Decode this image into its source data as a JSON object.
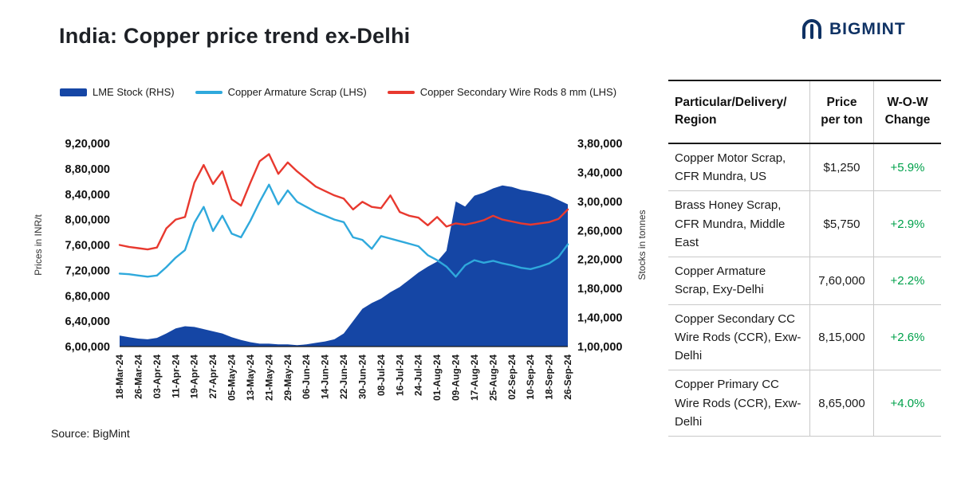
{
  "page": {
    "title": "India: Copper price trend ex-Delhi",
    "source": "Source: BigMint",
    "logo_text": "BIGMINT"
  },
  "colors": {
    "accent_navy": "#0f3264",
    "positive_green": "#00a14b",
    "series_area_blue": "#1546a5",
    "series_light_blue": "#2fa9dc",
    "series_red": "#e8392f"
  },
  "legend": [
    {
      "label": "LME Stock (RHS)",
      "color": "#1546a5",
      "type": "area"
    },
    {
      "label": "Copper Armature Scrap (LHS)",
      "color": "#2fa9dc",
      "type": "line"
    },
    {
      "label": "Copper Secondary Wire Rods 8 mm (LHS)",
      "color": "#e8392f",
      "type": "line"
    }
  ],
  "chart_data": {
    "type": "line",
    "title": "India: Copper price trend ex-Delhi",
    "legend_position": "top",
    "grid": false,
    "x_labels": [
      "18-Mar-24",
      "26-Mar-24",
      "03-Apr-24",
      "11-Apr-24",
      "19-Apr-24",
      "27-Apr-24",
      "05-May-24",
      "13-May-24",
      "21-May-24",
      "29-May-24",
      "06-Jun-24",
      "14-Jun-24",
      "22-Jun-24",
      "30-Jun-24",
      "08-Jul-24",
      "16-Jul-24",
      "24-Jul-24",
      "01-Aug-24",
      "09-Aug-24",
      "17-Aug-24",
      "25-Aug-24",
      "02-Sep-24",
      "10-Sep-24",
      "18-Sep-24",
      "26-Sep-24"
    ],
    "left_axis": {
      "label": "Prices in INR/t",
      "min": 600000,
      "max": 920000,
      "ticks": [
        "6,00,000",
        "6,40,000",
        "6,80,000",
        "7,20,000",
        "7,60,000",
        "8,00,000",
        "8,40,000",
        "8,80,000",
        "9,20,000"
      ]
    },
    "right_axis": {
      "label": "Stocks in tonnes",
      "min": 100000,
      "max": 380000,
      "ticks": [
        "1,00,000",
        "1,40,000",
        "1,80,000",
        "2,20,000",
        "2,60,000",
        "3,00,000",
        "3,40,000",
        "3,80,000"
      ]
    },
    "series": [
      {
        "id": "lme-stock",
        "name": "LME Stock (RHS)",
        "axis": "right",
        "type": "area",
        "color": "#1546a5",
        "values": [
          115000,
          113000,
          111000,
          110000,
          112000,
          118000,
          125000,
          128000,
          127000,
          124000,
          121000,
          118000,
          113000,
          109000,
          106000,
          104000,
          104000,
          103000,
          103000,
          102000,
          103000,
          105000,
          107000,
          110000,
          118000,
          135000,
          152000,
          160000,
          166000,
          175000,
          182000,
          192000,
          202000,
          210000,
          217000,
          232000,
          300000,
          293000,
          308000,
          312000,
          318000,
          322000,
          320000,
          316000,
          314000,
          311000,
          308000,
          302000,
          296000
        ]
      },
      {
        "id": "copper-armature-scrap",
        "name": "Copper Armature Scrap (LHS)",
        "axis": "left",
        "type": "line",
        "color": "#2fa9dc",
        "values": [
          715000,
          714000,
          712000,
          710000,
          712000,
          725000,
          740000,
          752000,
          795000,
          820000,
          782000,
          806000,
          778000,
          772000,
          798000,
          828000,
          855000,
          824000,
          846000,
          828000,
          820000,
          812000,
          806000,
          800000,
          796000,
          772000,
          768000,
          754000,
          774000,
          770000,
          766000,
          762000,
          758000,
          744000,
          736000,
          726000,
          710000,
          728000,
          736000,
          732000,
          735000,
          731000,
          728000,
          724000,
          722000,
          726000,
          731000,
          741000,
          761000
        ]
      },
      {
        "id": "copper-secondary-wire-rods",
        "name": "Copper Secondary Wire Rods 8 mm (LHS)",
        "axis": "left",
        "type": "line",
        "color": "#e8392f",
        "values": [
          760000,
          757000,
          755000,
          753000,
          756000,
          786000,
          800000,
          804000,
          858000,
          886000,
          856000,
          876000,
          832000,
          822000,
          858000,
          892000,
          903000,
          872000,
          890000,
          876000,
          864000,
          852000,
          845000,
          838000,
          833000,
          816000,
          828000,
          820000,
          818000,
          838000,
          812000,
          806000,
          803000,
          791000,
          804000,
          789000,
          794000,
          792000,
          795000,
          799000,
          806000,
          800000,
          797000,
          794000,
          792000,
          794000,
          796000,
          801000,
          816000
        ]
      }
    ]
  },
  "table": {
    "headers": {
      "particular": "Particular/Delivery/\nRegion",
      "price": "Price\nper ton",
      "change": "W-O-W\nChange"
    },
    "rows": [
      {
        "particular": "Copper Motor Scrap, CFR Mundra, US",
        "price": "$1,250",
        "change": "+5.9%"
      },
      {
        "particular": "Brass Honey Scrap, CFR Mundra, Middle East",
        "price": "$5,750",
        "change": "+2.9%"
      },
      {
        "particular": "Copper Armature Scrap, Exy-Delhi",
        "price": "7,60,000",
        "change": "+2.2%"
      },
      {
        "particular": "Copper Secondary CC Wire Rods (CCR), Exw-Delhi",
        "price": "8,15,000",
        "change": "+2.6%"
      },
      {
        "particular": "Copper Primary CC Wire Rods (CCR), Exw-Delhi",
        "price": "8,65,000",
        "change": "+4.0%"
      }
    ]
  }
}
